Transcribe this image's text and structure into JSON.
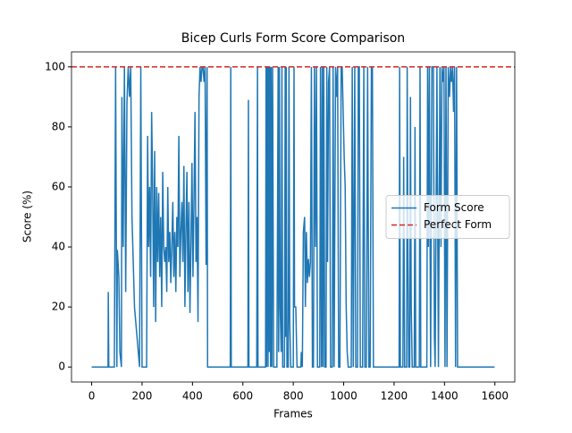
{
  "chart_data": {
    "type": "line",
    "title": "Bicep Curls Form Score Comparison",
    "xlabel": "Frames",
    "ylabel": "Score (%)",
    "x": [
      0,
      65,
      66,
      68,
      90,
      95,
      100,
      102,
      108,
      112,
      118,
      120,
      125,
      130,
      135,
      140,
      145,
      150,
      155,
      160,
      165,
      170,
      175,
      180,
      185,
      190,
      195,
      200,
      210,
      218,
      222,
      226,
      230,
      234,
      238,
      242,
      246,
      250,
      254,
      258,
      262,
      266,
      270,
      274,
      278,
      282,
      286,
      290,
      294,
      298,
      302,
      306,
      310,
      314,
      318,
      322,
      326,
      330,
      334,
      338,
      342,
      346,
      350,
      354,
      358,
      362,
      366,
      370,
      374,
      378,
      382,
      386,
      390,
      394,
      398,
      402,
      406,
      410,
      414,
      418,
      422,
      426,
      430,
      434,
      438,
      442,
      446,
      450,
      454,
      458,
      460,
      470,
      550,
      552,
      554,
      620,
      622,
      624,
      655,
      658,
      660,
      690,
      692,
      694,
      697,
      700,
      702,
      705,
      707,
      710,
      712,
      715,
      718,
      722,
      735,
      740,
      742,
      745,
      748,
      752,
      755,
      758,
      765,
      768,
      770,
      772,
      775,
      780,
      783,
      786,
      790,
      800,
      803,
      805,
      810,
      815,
      830,
      832,
      836,
      840,
      845,
      848,
      852,
      856,
      860,
      864,
      868,
      872,
      876,
      880,
      884,
      888,
      892,
      896,
      905,
      908,
      912,
      915,
      918,
      921,
      925,
      930,
      933,
      936,
      940,
      944,
      948,
      955,
      958,
      962,
      968,
      972,
      976,
      980,
      985,
      990,
      994,
      998,
      1002,
      1006,
      1010,
      1014,
      1018,
      1030,
      1034,
      1038,
      1044,
      1048,
      1055,
      1058,
      1062,
      1066,
      1075,
      1080,
      1084,
      1090,
      1095,
      1100,
      1105,
      1110,
      1114,
      1118,
      1220,
      1222,
      1225,
      1235,
      1238,
      1242,
      1250,
      1252,
      1255,
      1258,
      1262,
      1265,
      1268,
      1272,
      1280,
      1283,
      1286,
      1300,
      1303,
      1306,
      1330,
      1333,
      1336,
      1340,
      1345,
      1350,
      1356,
      1360,
      1363,
      1370,
      1376,
      1382,
      1386,
      1390,
      1394,
      1398,
      1402,
      1406,
      1410,
      1415,
      1420,
      1424,
      1428,
      1432,
      1436,
      1440,
      1444,
      1448,
      1452,
      1599
    ],
    "series": [
      {
        "name": "Form Score",
        "color": "#1f77b4",
        "values": [
          0,
          0,
          25,
          0,
          0,
          100,
          0,
          39,
          30,
          5,
          0,
          90,
          40,
          100,
          25,
          88,
          100,
          90,
          100,
          50,
          35,
          20,
          15,
          10,
          5,
          0,
          100,
          0,
          0,
          0,
          77,
          40,
          60,
          30,
          85,
          60,
          20,
          72,
          15,
          60,
          35,
          58,
          30,
          50,
          20,
          65,
          40,
          35,
          40,
          25,
          60,
          35,
          45,
          28,
          40,
          55,
          30,
          45,
          25,
          50,
          40,
          77,
          30,
          45,
          55,
          35,
          67,
          20,
          45,
          65,
          25,
          55,
          18,
          40,
          68,
          30,
          55,
          85,
          35,
          50,
          15,
          90,
          100,
          95,
          100,
          100,
          95,
          100,
          34,
          100,
          0,
          0,
          0,
          100,
          0,
          0,
          89,
          0,
          0,
          100,
          0,
          0,
          100,
          0,
          100,
          0,
          100,
          5,
          100,
          0,
          100,
          0,
          100,
          0,
          0,
          100,
          5,
          100,
          20,
          5,
          100,
          0,
          0,
          100,
          10,
          100,
          0,
          0,
          100,
          15,
          0,
          0,
          100,
          20,
          20,
          0,
          0,
          5,
          0,
          45,
          50,
          20,
          45,
          28,
          36,
          30,
          35,
          100,
          0,
          0,
          100,
          40,
          100,
          0,
          0,
          100,
          0,
          100,
          0,
          100,
          0,
          0,
          100,
          35,
          95,
          100,
          0,
          0,
          100,
          0,
          100,
          90,
          100,
          0,
          0,
          100,
          100,
          85,
          70,
          60,
          20,
          5,
          0,
          0,
          100,
          0,
          100,
          0,
          0,
          100,
          100,
          0,
          0,
          100,
          0,
          0,
          100,
          0,
          0,
          100,
          100,
          0,
          0,
          100,
          0,
          0,
          70,
          0,
          0,
          100,
          40,
          0,
          0,
          90,
          20,
          0,
          0,
          80,
          0,
          0,
          100,
          0,
          0,
          100,
          40,
          100,
          0,
          100,
          100,
          10,
          0,
          100,
          0,
          100,
          40,
          100,
          95,
          100,
          0,
          100,
          0,
          100,
          90,
          100,
          95,
          100,
          85,
          100,
          0,
          100,
          0,
          0
        ]
      }
    ],
    "reference_line": {
      "name": "Perfect Form",
      "value": 100,
      "color": "#d62728",
      "style": "dashed"
    },
    "xlim": [
      -80,
      1679
    ],
    "ylim": [
      -5,
      105
    ],
    "xticks": [
      0,
      200,
      400,
      600,
      800,
      1000,
      1200,
      1400,
      1600
    ],
    "yticks": [
      0,
      20,
      40,
      60,
      80,
      100
    ],
    "legend": "center right"
  }
}
